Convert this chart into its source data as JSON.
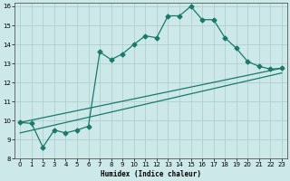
{
  "xlabel": "Humidex (Indice chaleur)",
  "bg_color": "#cce8e8",
  "grid_color": "#aacccc",
  "line_color": "#1a7a6a",
  "xlim": [
    -0.5,
    23.5
  ],
  "ylim": [
    8,
    16.2
  ],
  "xticks": [
    0,
    1,
    2,
    3,
    4,
    5,
    6,
    7,
    8,
    9,
    10,
    11,
    12,
    13,
    14,
    15,
    16,
    17,
    18,
    19,
    20,
    21,
    22,
    23
  ],
  "yticks": [
    8,
    9,
    10,
    11,
    12,
    13,
    14,
    15,
    16
  ],
  "line1_x": [
    0,
    1,
    2,
    3,
    4,
    5,
    6,
    7,
    8,
    9,
    10,
    11,
    12,
    13,
    14,
    15,
    16,
    17,
    18,
    19,
    20,
    21,
    22,
    23
  ],
  "line1_y": [
    9.9,
    9.85,
    8.6,
    9.5,
    9.35,
    9.5,
    9.7,
    13.6,
    13.2,
    13.5,
    14.0,
    14.45,
    14.35,
    15.5,
    15.5,
    16.0,
    15.3,
    15.3,
    14.35,
    13.8,
    13.1,
    12.85,
    12.7,
    12.75
  ],
  "line2_x": [
    0,
    23
  ],
  "line2_y": [
    9.9,
    12.75
  ],
  "line3_x": [
    0,
    23
  ],
  "line3_y": [
    9.35,
    12.5
  ]
}
